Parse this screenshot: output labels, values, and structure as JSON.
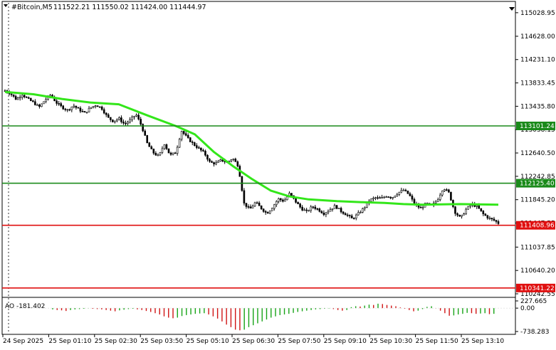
{
  "header": {
    "symbol": "#Bitcoin,M5",
    "ohlc": "111522.21 111550.02 111424.00 111444.97"
  },
  "colors": {
    "background": "#ffffff",
    "candle": "#000000",
    "ma": "#33e61a",
    "resistance_line": "#1a8a1a",
    "support_line": "#e01010",
    "ao_up": "#17a417",
    "ao_down": "#d01414",
    "grid_dash": "#000000"
  },
  "chart_data": [
    {
      "type": "candlestick",
      "title": "#Bitcoin,M5",
      "ylim": [
        110242.55,
        115100
      ],
      "y_ticks": [
        "115028.95",
        "114628.00",
        "114231.10",
        "113833.45",
        "113435.80",
        "113038.15",
        "112640.50",
        "112242.85",
        "111845.20",
        "111447.55",
        "111037.85",
        "110640.20",
        "110242.55"
      ],
      "x_ticks": [
        "24 Sep 2025",
        "25 Sep 01:10",
        "25 Sep 02:30",
        "25 Sep 03:50",
        "25 Sep 05:10",
        "25 Sep 06:30",
        "25 Sep 07:50",
        "25 Sep 09:10",
        "25 Sep 10:30",
        "25 Sep 11:50",
        "25 Sep 13:10"
      ],
      "close_path": [
        [
          0,
          113700
        ],
        [
          3,
          113650
        ],
        [
          6,
          113550
        ],
        [
          9,
          113640
        ],
        [
          12,
          113560
        ],
        [
          15,
          113500
        ],
        [
          18,
          113420
        ],
        [
          21,
          113540
        ],
        [
          24,
          113630
        ],
        [
          27,
          113500
        ],
        [
          30,
          113420
        ],
        [
          33,
          113370
        ],
        [
          36,
          113450
        ],
        [
          39,
          113380
        ],
        [
          42,
          113320
        ],
        [
          45,
          113410
        ],
        [
          48,
          113460
        ],
        [
          51,
          113400
        ],
        [
          54,
          113250
        ],
        [
          57,
          113180
        ],
        [
          60,
          113230
        ],
        [
          63,
          113130
        ],
        [
          66,
          113200
        ],
        [
          69,
          113300
        ],
        [
          72,
          113100
        ],
        [
          75,
          112800
        ],
        [
          78,
          112650
        ],
        [
          81,
          112580
        ],
        [
          84,
          112800
        ],
        [
          87,
          112600
        ],
        [
          90,
          112650
        ],
        [
          93,
          113020
        ],
        [
          96,
          112900
        ],
        [
          99,
          112800
        ],
        [
          102,
          112720
        ],
        [
          105,
          112640
        ],
        [
          108,
          112480
        ],
        [
          111,
          112460
        ],
        [
          114,
          112520
        ],
        [
          117,
          112480
        ],
        [
          120,
          112550
        ],
        [
          123,
          112420
        ],
        [
          126,
          111780
        ],
        [
          129,
          111680
        ],
        [
          132,
          111800
        ],
        [
          135,
          111700
        ],
        [
          138,
          111610
        ],
        [
          141,
          111720
        ],
        [
          144,
          111860
        ],
        [
          147,
          111820
        ],
        [
          150,
          111950
        ],
        [
          153,
          111820
        ],
        [
          156,
          111700
        ],
        [
          159,
          111640
        ],
        [
          162,
          111730
        ],
        [
          165,
          111680
        ],
        [
          168,
          111610
        ],
        [
          171,
          111670
        ],
        [
          174,
          111740
        ],
        [
          177,
          111650
        ],
        [
          180,
          111590
        ],
        [
          183,
          111520
        ],
        [
          186,
          111600
        ],
        [
          189,
          111700
        ],
        [
          192,
          111830
        ],
        [
          195,
          111880
        ],
        [
          198,
          111860
        ],
        [
          201,
          111910
        ],
        [
          204,
          111880
        ],
        [
          207,
          111960
        ],
        [
          210,
          112010
        ],
        [
          213,
          111930
        ],
        [
          216,
          111760
        ],
        [
          219,
          111700
        ],
        [
          222,
          111780
        ],
        [
          225,
          111740
        ],
        [
          228,
          111850
        ],
        [
          231,
          112050
        ],
        [
          234,
          111960
        ],
        [
          237,
          111640
        ],
        [
          240,
          111530
        ],
        [
          243,
          111680
        ],
        [
          246,
          111770
        ],
        [
          249,
          111720
        ],
        [
          252,
          111600
        ],
        [
          255,
          111530
        ],
        [
          258,
          111490
        ],
        [
          260,
          111444.97
        ]
      ],
      "moving_average": [
        [
          0,
          113680
        ],
        [
          15,
          113640
        ],
        [
          30,
          113560
        ],
        [
          45,
          113500
        ],
        [
          60,
          113470
        ],
        [
          75,
          113280
        ],
        [
          90,
          113100
        ],
        [
          100,
          112960
        ],
        [
          110,
          112660
        ],
        [
          120,
          112420
        ],
        [
          130,
          112200
        ],
        [
          140,
          112000
        ],
        [
          150,
          111900
        ],
        [
          160,
          111850
        ],
        [
          175,
          111820
        ],
        [
          190,
          111800
        ],
        [
          200,
          111790
        ],
        [
          210,
          111770
        ],
        [
          220,
          111760
        ],
        [
          240,
          111770
        ],
        [
          260,
          111760
        ]
      ],
      "levels": [
        {
          "label": "113101.24",
          "value": 113101.24,
          "color": "#1a8a1a"
        },
        {
          "label": "112125.40",
          "value": 112125.4,
          "color": "#1a8a1a"
        },
        {
          "label": "111408.96",
          "value": 111408.96,
          "color": "#e01010"
        },
        {
          "label": "110341.22",
          "value": 110341.22,
          "color": "#e01010"
        }
      ],
      "grid": false,
      "legend": "none"
    },
    {
      "type": "bar",
      "title": "AO -181.402",
      "ylim": [
        -738.283,
        227.665
      ],
      "y_ticks": [
        "227.665",
        "0.00",
        "-738.283"
      ],
      "values": [
        -40,
        -60,
        -70,
        -90,
        -60,
        -40,
        -30,
        -20,
        -10,
        -20,
        -30,
        -40,
        -60,
        -80,
        -100,
        -70,
        -50,
        -30,
        -20,
        -40,
        -60,
        -90,
        -120,
        -160,
        -200,
        -260,
        -300,
        -320,
        -300,
        -250,
        -220,
        -200,
        -180,
        -170,
        -160,
        -200,
        -260,
        -330,
        -420,
        -520,
        -600,
        -680,
        -700,
        -680,
        -600,
        -540,
        -480,
        -420,
        -360,
        -300,
        -260,
        -220,
        -200,
        -180,
        -150,
        -120,
        -100,
        -80,
        -60,
        -40,
        -30,
        -20,
        -10,
        -30,
        -60,
        -80,
        -60,
        30,
        60,
        50,
        80,
        110,
        100,
        140,
        130,
        100,
        80,
        60,
        20,
        -20,
        -60,
        -100,
        -80,
        -30,
        40,
        60,
        -10,
        -80,
        -160,
        -240,
        -230,
        -200,
        -180,
        -150,
        -160,
        -180,
        -170,
        -160,
        -190,
        -180
      ]
    }
  ]
}
